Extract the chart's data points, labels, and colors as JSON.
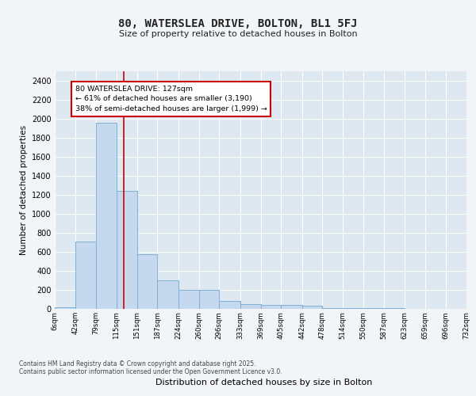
{
  "title1": "80, WATERSLEA DRIVE, BOLTON, BL1 5FJ",
  "title2": "Size of property relative to detached houses in Bolton",
  "xlabel": "Distribution of detached houses by size in Bolton",
  "ylabel": "Number of detached properties",
  "bar_color": "#c5d8ee",
  "bar_edge_color": "#7aadd4",
  "plot_bg_color": "#dde8f0",
  "fig_bg_color": "#f2f5f8",
  "grid_color": "#ffffff",
  "bin_edges": [
    6,
    42,
    79,
    115,
    151,
    187,
    224,
    260,
    296,
    333,
    369,
    405,
    442,
    478,
    514,
    550,
    587,
    623,
    659,
    696,
    732
  ],
  "bar_heights": [
    15,
    710,
    1960,
    1240,
    575,
    300,
    200,
    200,
    80,
    48,
    38,
    38,
    30,
    10,
    10,
    5,
    5,
    3,
    2,
    2
  ],
  "bin_labels": [
    "6sqm",
    "42sqm",
    "79sqm",
    "115sqm",
    "151sqm",
    "187sqm",
    "224sqm",
    "260sqm",
    "296sqm",
    "333sqm",
    "369sqm",
    "405sqm",
    "442sqm",
    "478sqm",
    "514sqm",
    "550sqm",
    "587sqm",
    "623sqm",
    "659sqm",
    "696sqm",
    "732sqm"
  ],
  "ylim": [
    0,
    2500
  ],
  "yticks": [
    0,
    200,
    400,
    600,
    800,
    1000,
    1200,
    1400,
    1600,
    1800,
    2000,
    2200,
    2400
  ],
  "property_size": 127,
  "red_line_color": "#cc0000",
  "annotation_box_edgecolor": "#cc0000",
  "annotation_text_line1": "80 WATERSLEA DRIVE: 127sqm",
  "annotation_text_line2": "← 61% of detached houses are smaller (3,190)",
  "annotation_text_line3": "38% of semi-detached houses are larger (1,999) →",
  "footnote1": "Contains HM Land Registry data © Crown copyright and database right 2025.",
  "footnote2": "Contains public sector information licensed under the Open Government Licence v3.0."
}
